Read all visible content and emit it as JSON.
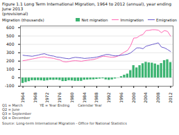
{
  "chart_data": {
    "type": "bar",
    "title": "Figure 1.1 Long Term International Migration, 1964 to 2012 (annual), year ending June 2013",
    "subtitle": "(provisional)",
    "ylabel": "Migration (thousands)",
    "annotations": [
      "Q1 = March\nQ2 = June\nQ3 = September\nQ4 = December",
      "YE = Year Ending",
      "Calendar Year"
    ],
    "source": "Source: Long-term International Migration - Office for National Statistics",
    "categories": [
      "1964",
      null,
      null,
      null,
      "1968",
      null,
      null,
      null,
      "1972",
      null,
      null,
      null,
      "1976",
      null,
      null,
      null,
      "1980",
      null,
      null,
      null,
      "1984",
      null,
      null,
      null,
      "1988",
      null,
      null,
      null,
      "1992",
      null,
      null,
      null,
      "1996",
      null,
      null,
      null,
      "2000",
      null,
      null,
      null,
      "2004",
      null,
      null,
      null,
      "2008",
      null,
      null,
      null,
      "2012"
    ],
    "series": [
      {
        "name": "Net migration",
        "type": "bar",
        "color": "#3cb371",
        "values": [
          -65,
          -55,
          -44,
          -33,
          -33,
          -32,
          -34,
          -38,
          -33,
          -27,
          -28,
          -26,
          -30,
          -43,
          -42,
          -33,
          -36,
          -40,
          -40,
          -40,
          -27,
          -25,
          -23,
          -22,
          -18,
          -13,
          -10,
          -23,
          -28,
          -23,
          -12,
          -3,
          15,
          33,
          46,
          87,
          147,
          120,
          147,
          170,
          187,
          180,
          177,
          167,
          152,
          172,
          207,
          217,
          184
        ]
      },
      {
        "name": "Immigration",
        "type": "line",
        "color": "#ff69b4",
        "values": [
          205,
          210,
          218,
          225,
          232,
          240,
          248,
          250,
          242,
          238,
          232,
          222,
          215,
          195,
          190,
          195,
          202,
          205,
          202,
          198,
          205,
          210,
          215,
          220,
          230,
          245,
          258,
          255,
          250,
          245,
          250,
          262,
          285,
          308,
          328,
          385,
          475,
          478,
          505,
          518,
          565,
          568,
          575,
          575,
          570,
          540,
          565,
          555,
          498
        ]
      },
      {
        "name": "Emigration",
        "type": "line",
        "color": "#6a5acd",
        "values": [
          270,
          265,
          262,
          258,
          265,
          272,
          282,
          288,
          275,
          265,
          260,
          248,
          245,
          238,
          232,
          228,
          238,
          245,
          242,
          238,
          232,
          235,
          238,
          242,
          248,
          258,
          268,
          278,
          278,
          268,
          262,
          265,
          270,
          275,
          282,
          298,
          328,
          358,
          358,
          348,
          378,
          388,
          398,
          408,
          418,
          368,
          358,
          338,
          314
        ]
      }
    ],
    "ylim": [
      -100,
      620
    ],
    "yticks": [
      -100,
      0,
      100,
      200,
      300,
      400,
      500,
      600
    ],
    "grid": true,
    "legend": "top"
  }
}
